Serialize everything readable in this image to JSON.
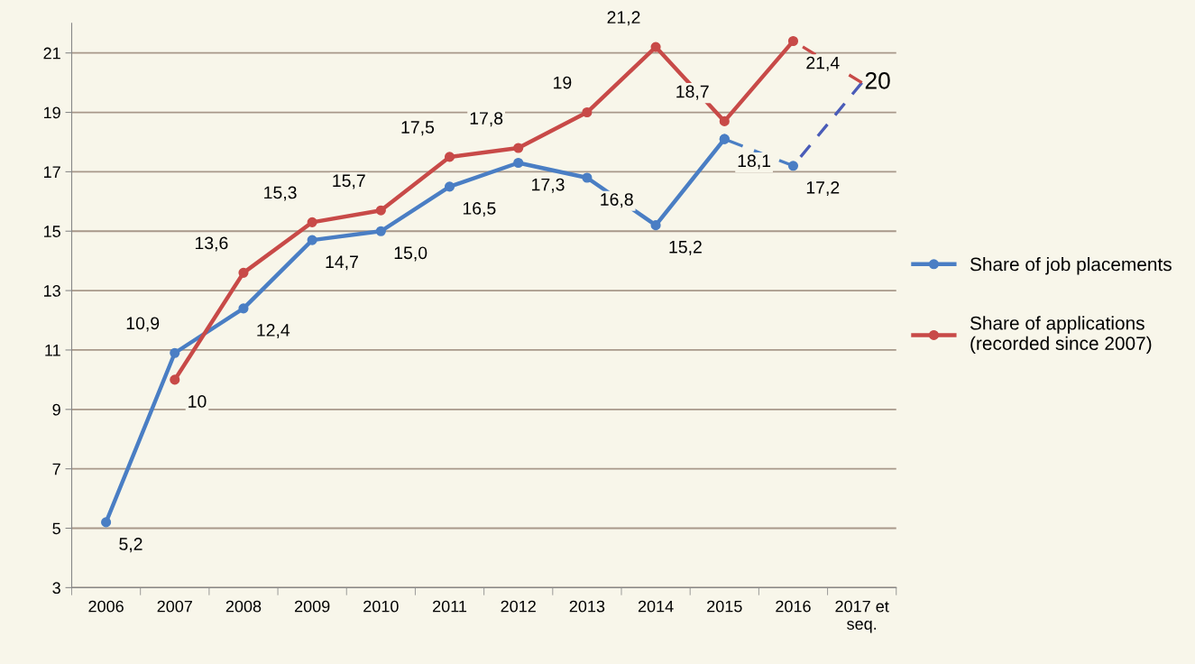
{
  "chart_data": {
    "type": "line",
    "categories": [
      "2006",
      "2007",
      "2008",
      "2009",
      "2010",
      "2011",
      "2012",
      "2013",
      "2014",
      "2015",
      "2016",
      "2017 et\nseq."
    ],
    "series": [
      {
        "name": "Share of job placements",
        "color": "#4a7ec4",
        "marker": "circle",
        "line_style": "solid",
        "values": [
          5.2,
          10.9,
          12.4,
          14.7,
          15.0,
          16.5,
          17.3,
          16.8,
          15.2,
          18.1,
          null,
          null
        ],
        "value_labels": [
          "5,2",
          "10,9",
          "12,4",
          "14,7",
          "15,0",
          "16,5",
          "17,3",
          "16,8",
          "15,2",
          "18,1",
          null,
          null
        ]
      },
      {
        "color": "#4a7ec4",
        "marker": "circle",
        "line_style": "dashed",
        "values": [
          null,
          null,
          null,
          null,
          null,
          null,
          null,
          null,
          null,
          18.1,
          17.2,
          null
        ],
        "value_labels": [
          null,
          null,
          null,
          null,
          null,
          null,
          null,
          null,
          null,
          null,
          "17,2",
          null
        ]
      },
      {
        "color": "#4a5cb8",
        "line_style": "dashed",
        "values": [
          null,
          null,
          null,
          null,
          null,
          null,
          null,
          null,
          null,
          null,
          17.2,
          20
        ],
        "value_labels": [
          null,
          null,
          null,
          null,
          null,
          null,
          null,
          null,
          null,
          null,
          null,
          "20"
        ]
      },
      {
        "name": "Share of applications\n(recorded since 2007)",
        "color": "#c84a48",
        "marker": "circle",
        "line_style": "solid",
        "values": [
          null,
          10,
          13.6,
          15.3,
          15.7,
          17.5,
          17.8,
          19,
          21.2,
          18.7,
          21.4,
          null
        ],
        "value_labels": [
          null,
          "10",
          "13,6",
          "15,3",
          "15,7",
          "17,5",
          "17,8",
          "19",
          "21,2",
          "18,7",
          "21,4",
          null
        ]
      },
      {
        "color": "#c84a48",
        "line_style": "dashed",
        "values": [
          null,
          null,
          null,
          null,
          null,
          null,
          null,
          null,
          null,
          null,
          21.4,
          20
        ],
        "value_labels": [
          null,
          null,
          null,
          null,
          null,
          null,
          null,
          null,
          null,
          null,
          null,
          null
        ]
      }
    ],
    "ylim": [
      3,
      22
    ],
    "yticks": [
      3,
      5,
      7,
      9,
      11,
      13,
      15,
      17,
      19,
      21
    ],
    "grid": "y",
    "legend": "right"
  }
}
